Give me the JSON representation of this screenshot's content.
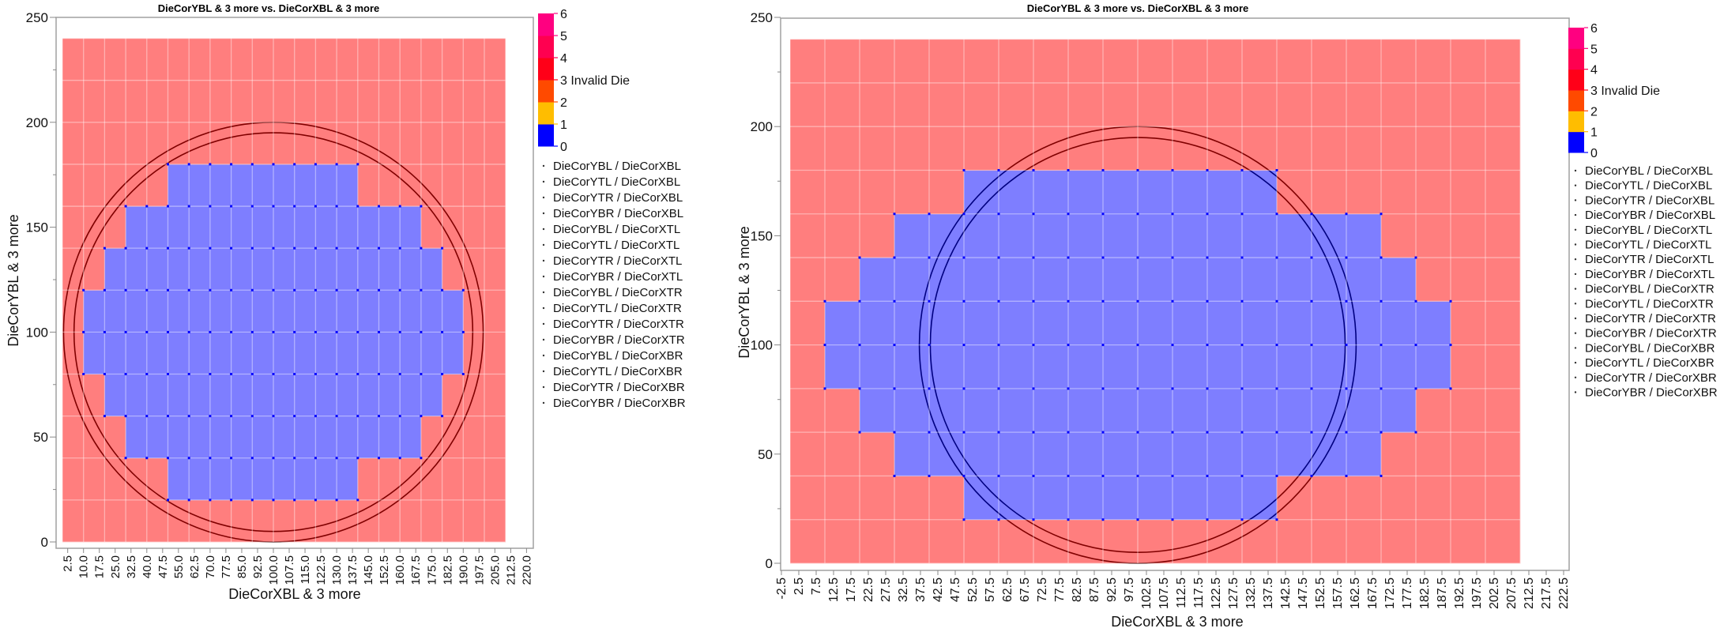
{
  "chart_data": [
    {
      "type": "heatmap",
      "title": "DieCorYBL & 3 more vs. DieCorXBL & 3 more",
      "xlabel": "DieCorXBL & 3 more",
      "ylabel": "DieCorYBL & 3 more",
      "ylim": [
        0,
        250
      ],
      "yticks": [
        "0",
        "50",
        "100",
        "150",
        "200",
        "250"
      ],
      "xticks": [
        "2.5",
        "10.0",
        "17.5",
        "25.0",
        "32.5",
        "40.0",
        "47.5",
        "55.0",
        "62.5",
        "70.0",
        "77.5",
        "85.0",
        "92.5",
        "100.0",
        "107.5",
        "115.0",
        "122.5",
        "130.0",
        "137.5",
        "145.0",
        "152.5",
        "160.0",
        "167.5",
        "175.0",
        "182.5",
        "190.0",
        "197.5",
        "205.0",
        "212.5",
        "220.0"
      ],
      "grid": true,
      "die_width": 10,
      "die_height": 20,
      "x_range": [
        0,
        210
      ],
      "y_range": [
        0,
        240
      ],
      "default_value": 3,
      "valid_rows": [
        {
          "y": 20,
          "x_from": 50,
          "x_to": 140,
          "value": 0
        },
        {
          "y": 40,
          "x_from": 30,
          "x_to": 170,
          "value": 0
        },
        {
          "y": 60,
          "x_from": 20,
          "x_to": 180,
          "value": 0
        },
        {
          "y": 80,
          "x_from": 10,
          "x_to": 190,
          "value": 0
        },
        {
          "y": 100,
          "x_from": 10,
          "x_to": 190,
          "value": 0
        },
        {
          "y": 120,
          "x_from": 20,
          "x_to": 180,
          "value": 0
        },
        {
          "y": 140,
          "x_from": 30,
          "x_to": 170,
          "value": 0
        },
        {
          "y": 160,
          "x_from": 50,
          "x_to": 140,
          "value": 0
        }
      ],
      "wafer_circles": [
        {
          "cx": 100,
          "cy": 100,
          "r": 100
        },
        {
          "cx": 100,
          "cy": 100,
          "r": 95
        }
      ],
      "color_scale": {
        "labels": [
          "0",
          "1",
          "2",
          "3 Invalid Die",
          "4",
          "5",
          "6"
        ],
        "colors": [
          "#0000FF",
          "#FFBD00",
          "#FF4A00",
          "#FF0018",
          "#FF0050",
          "#FF0080"
        ]
      },
      "legend": [
        "DieCorYBL / DieCorXBL",
        "DieCorYTL / DieCorXBL",
        "DieCorYTR / DieCorXBL",
        "DieCorYBR / DieCorXBL",
        "DieCorYBL / DieCorXTL",
        "DieCorYTL / DieCorXTL",
        "DieCorYTR / DieCorXTL",
        "DieCorYBR / DieCorXTL",
        "DieCorYBL / DieCorXTR",
        "DieCorYTL / DieCorXTR",
        "DieCorYTR / DieCorXTR",
        "DieCorYBR / DieCorXTR",
        "DieCorYBL / DieCorXBR",
        "DieCorYTL / DieCorXBR",
        "DieCorYTR / DieCorXBR",
        "DieCorYBR / DieCorXBR"
      ]
    },
    {
      "type": "heatmap",
      "title": "DieCorYBL & 3 more vs. DieCorXBL & 3 more",
      "xlabel": "DieCorXBL & 3 more",
      "ylabel": "DieCorYBL & 3 more",
      "ylim": [
        0,
        250
      ],
      "yticks": [
        "0",
        "50",
        "100",
        "150",
        "200",
        "250"
      ],
      "xticks": [
        "-2.5",
        "2.5",
        "7.5",
        "12.5",
        "17.5",
        "22.5",
        "27.5",
        "32.5",
        "37.5",
        "42.5",
        "47.5",
        "52.5",
        "57.5",
        "62.5",
        "67.5",
        "72.5",
        "77.5",
        "82.5",
        "87.5",
        "92.5",
        "97.5",
        "102.5",
        "107.5",
        "112.5",
        "117.5",
        "122.5",
        "127.5",
        "132.5",
        "137.5",
        "142.5",
        "147.5",
        "152.5",
        "157.5",
        "162.5",
        "167.5",
        "172.5",
        "177.5",
        "182.5",
        "187.5",
        "192.5",
        "197.5",
        "202.5",
        "207.5",
        "212.5",
        "217.5",
        "222.5"
      ],
      "grid": true,
      "die_width": 10,
      "die_height": 20,
      "x_range": [
        0,
        210
      ],
      "y_range": [
        0,
        240
      ],
      "default_value": 3,
      "valid_rows": [
        {
          "y": 20,
          "x_from": 50,
          "x_to": 140,
          "value": 0
        },
        {
          "y": 40,
          "x_from": 30,
          "x_to": 170,
          "value": 0
        },
        {
          "y": 60,
          "x_from": 20,
          "x_to": 180,
          "value": 0
        },
        {
          "y": 80,
          "x_from": 10,
          "x_to": 190,
          "value": 0
        },
        {
          "y": 100,
          "x_from": 10,
          "x_to": 190,
          "value": 0
        },
        {
          "y": 120,
          "x_from": 20,
          "x_to": 180,
          "value": 0
        },
        {
          "y": 140,
          "x_from": 30,
          "x_to": 170,
          "value": 0
        },
        {
          "y": 160,
          "x_from": 50,
          "x_to": 140,
          "value": 0
        }
      ],
      "wafer_circles": [
        {
          "cx": 100,
          "cy": 100,
          "r": 100
        },
        {
          "cx": 100,
          "cy": 100,
          "r": 95
        }
      ],
      "color_scale": {
        "labels": [
          "0",
          "1",
          "2",
          "3 Invalid Die",
          "4",
          "5",
          "6"
        ],
        "colors": [
          "#0000FF",
          "#FFBD00",
          "#FF4A00",
          "#FF0018",
          "#FF0050",
          "#FF0080"
        ]
      },
      "legend": [
        "DieCorYBL / DieCorXBL",
        "DieCorYTL / DieCorXBL",
        "DieCorYTR / DieCorXBL",
        "DieCorYBR / DieCorXBL",
        "DieCorYBL / DieCorXTL",
        "DieCorYTL / DieCorXTL",
        "DieCorYTR / DieCorXTL",
        "DieCorYBR / DieCorXTL",
        "DieCorYBL / DieCorXTR",
        "DieCorYTL / DieCorXTR",
        "DieCorYTR / DieCorXTR",
        "DieCorYBR / DieCorXTR",
        "DieCorYBL / DieCorXBR",
        "DieCorYTL / DieCorXBR",
        "DieCorYTR / DieCorXBR",
        "DieCorYBR / DieCorXBR"
      ]
    }
  ],
  "colors": {
    "valid": "#0000FF",
    "invalid": "#FF0000",
    "circle": "#000000"
  }
}
